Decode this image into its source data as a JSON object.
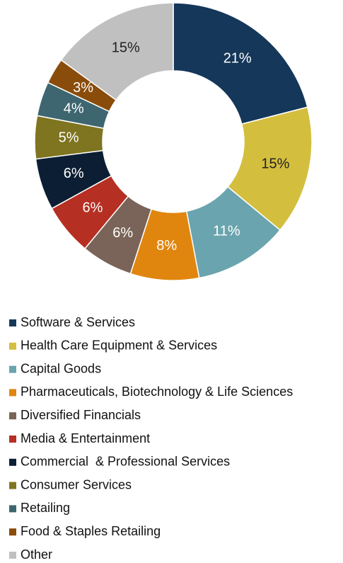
{
  "chart_data": {
    "type": "pie",
    "donut": true,
    "categories": [
      "Software & Services",
      "Health Care Equipment & Services",
      "Capital Goods",
      "Pharmaceuticals, Biotechnology & Life Sciences",
      "Diversified Financials",
      "Media & Entertainment",
      "Commercial  & Professional Services",
      "Consumer Services",
      "Retailing",
      "Food & Staples Retailing",
      "Other"
    ],
    "values": [
      21,
      15,
      11,
      8,
      6,
      6,
      6,
      5,
      4,
      3,
      15
    ],
    "value_labels": [
      "21%",
      "15%",
      "11%",
      "8%",
      "6%",
      "6%",
      "6%",
      "5%",
      "4%",
      "3%",
      "15%"
    ],
    "colors": [
      "#14375a",
      "#d4be3e",
      "#6aa4ae",
      "#e0860f",
      "#7a6358",
      "#b52f22",
      "#0c1e33",
      "#7f7420",
      "#3d6670",
      "#8a4c0a",
      "#c0c0c0"
    ],
    "legend": "bottom"
  }
}
